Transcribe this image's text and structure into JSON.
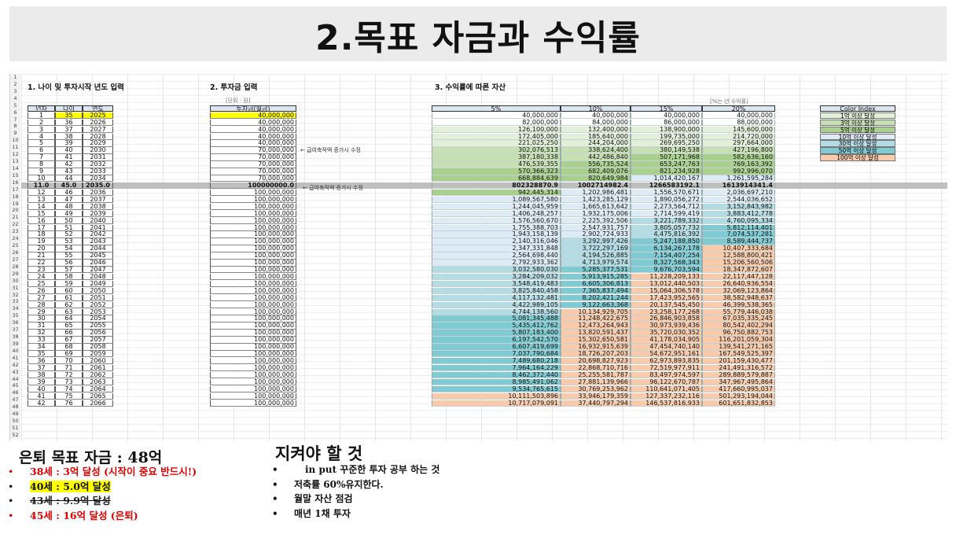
{
  "title": "2.목표 자금과 수익률",
  "sections": {
    "s1": "1. 나이 및 투자시작 년도 입력",
    "s2": "2. 투자금 입력",
    "s3": "3. 수익률에 따른 자산",
    "unit": "[단위 : 원]",
    "percent_note": "[%는 년 수익률]"
  },
  "headers": {
    "year": "년차",
    "age": "나이",
    "yr": "연도",
    "invest": "투자금(월금)",
    "r5": "5%",
    "r10": "10%",
    "r15": "15%",
    "r20": "20%",
    "color_index": "Color Index"
  },
  "notes": {
    "n1": "← 급여축적액 증가시 수정",
    "n2": "← 급여축적액 증가시 수정"
  },
  "legend": [
    "1억 이상 달성",
    "3억 이상 달성",
    "5억 이상 달성",
    "10억 이상 달성",
    "30억 이상 달성",
    "50억 이상 달성",
    "100억 이상 달성"
  ],
  "legend_colors": [
    "#e2f0d9",
    "#c6e0b4",
    "#a9d08e",
    "#ddebf7",
    "#b4dce4",
    "#7fcad3",
    "#f8cbad"
  ],
  "row_numbers": [
    "1",
    "2",
    "3",
    "4",
    "5",
    "6",
    "7",
    "8",
    "9",
    "10",
    "11",
    "12",
    "13",
    "14",
    "15",
    "16",
    "17",
    "18",
    "19",
    "20",
    "21",
    "22",
    "23",
    "24",
    "25",
    "26",
    "27",
    "28",
    "29",
    "30",
    "31",
    "32",
    "33",
    "34",
    "35",
    "36",
    "37",
    "38",
    "39",
    "40",
    "41",
    "42",
    "43",
    "44",
    "45",
    "46",
    "47",
    "48",
    "49",
    "50",
    "51",
    "52"
  ],
  "rows": [
    [
      "1",
      "35",
      "2025",
      "40,000,000",
      "40,000,000",
      "40,000,000",
      "40,000,000",
      "40,000,000"
    ],
    [
      "2",
      "36",
      "2026",
      "40,000,000",
      "82,000,000",
      "84,000,000",
      "86,000,000",
      "88,000,000"
    ],
    [
      "3",
      "37",
      "2027",
      "40,000,000",
      "126,100,000",
      "132,400,000",
      "138,900,000",
      "145,600,000"
    ],
    [
      "4",
      "38",
      "2028",
      "40,000,000",
      "172,405,000",
      "185,640,000",
      "199,735,000",
      "214,720,000"
    ],
    [
      "5",
      "39",
      "2029",
      "40,000,000",
      "221,025,250",
      "244,204,000",
      "269,695,250",
      "297,664,000"
    ],
    [
      "6",
      "40",
      "2030",
      "70,000,000",
      "302,076,513",
      "338,624,400",
      "380,149,538",
      "427,196,800"
    ],
    [
      "7",
      "41",
      "2031",
      "70,000,000",
      "387,180,338",
      "442,486,840",
      "507,171,968",
      "582,636,160"
    ],
    [
      "8",
      "42",
      "2032",
      "70,000,000",
      "476,539,355",
      "556,735,524",
      "653,247,763",
      "769,163,392"
    ],
    [
      "9",
      "43",
      "2033",
      "70,000,000",
      "570,366,323",
      "682,409,076",
      "821,234,928",
      "992,996,070"
    ],
    [
      "10",
      "44",
      "2034",
      "70,000,000",
      "668,884,639",
      "820,649,984",
      "1,014,420,167",
      "1,261,595,284"
    ],
    [
      "11.0",
      "45.0",
      "2035.0",
      "100000000.0",
      "802328870.9",
      "1002714982.4",
      "1266583192.1",
      "1613914341.4"
    ],
    [
      "12",
      "46",
      "2036",
      "100,000,000",
      "942,445,314",
      "1,202,986,481",
      "1,556,570,671",
      "2,036,697,210"
    ],
    [
      "13",
      "47",
      "2037",
      "100,000,000",
      "1,089,567,580",
      "1,423,285,129",
      "1,890,056,272",
      "2,544,036,652"
    ],
    [
      "14",
      "48",
      "2038",
      "100,000,000",
      "1,244,045,959",
      "1,665,613,642",
      "2,273,564,712",
      "3,152,843,982"
    ],
    [
      "15",
      "49",
      "2039",
      "100,000,000",
      "1,406,248,257",
      "1,932,175,006",
      "2,714,599,419",
      "3,883,412,778"
    ],
    [
      "16",
      "50",
      "2040",
      "100,000,000",
      "1,576,560,670",
      "2,225,392,506",
      "3,221,789,332",
      "4,760,095,334"
    ],
    [
      "17",
      "51",
      "2041",
      "100,000,000",
      "1,755,388,703",
      "2,547,931,757",
      "3,805,057,732",
      "5,812,114,401"
    ],
    [
      "18",
      "52",
      "2042",
      "100,000,000",
      "1,943,158,139",
      "2,902,724,933",
      "4,475,816,392",
      "7,074,537,281"
    ],
    [
      "19",
      "53",
      "2043",
      "100,000,000",
      "2,140,316,046",
      "3,292,997,426",
      "5,247,188,850",
      "8,589,444,737"
    ],
    [
      "20",
      "54",
      "2044",
      "100,000,000",
      "2,347,331,848",
      "3,722,297,169",
      "6,134,267,178",
      "10,407,333,684"
    ],
    [
      "21",
      "55",
      "2045",
      "100,000,000",
      "2,564,698,440",
      "4,194,526,885",
      "7,154,407,254",
      "12,588,800,421"
    ],
    [
      "22",
      "56",
      "2046",
      "100,000,000",
      "2,792,933,362",
      "4,713,979,574",
      "8,327,568,343",
      "15,206,560,506"
    ],
    [
      "23",
      "57",
      "2047",
      "100,000,000",
      "3,032,580,030",
      "5,285,377,531",
      "9,676,703,594",
      "18,347,872,607"
    ],
    [
      "24",
      "58",
      "2048",
      "100,000,000",
      "3,284,209,032",
      "5,913,915,285",
      "11,228,209,133",
      "22,117,447,128"
    ],
    [
      "25",
      "59",
      "2049",
      "100,000,000",
      "3,548,419,483",
      "6,605,306,813",
      "13,012,440,503",
      "26,640,936,554"
    ],
    [
      "26",
      "60",
      "2050",
      "100,000,000",
      "3,825,840,458",
      "7,365,837,494",
      "15,064,306,578",
      "32,069,123,864"
    ],
    [
      "27",
      "61",
      "2051",
      "100,000,000",
      "4,117,132,481",
      "8,202,421,244",
      "17,423,952,565",
      "38,582,948,637"
    ],
    [
      "28",
      "62",
      "2052",
      "100,000,000",
      "4,422,989,105",
      "9,122,663,368",
      "20,137,545,450",
      "46,399,538,365"
    ],
    [
      "29",
      "63",
      "2053",
      "100,000,000",
      "4,744,138,560",
      "10,134,929,705",
      "23,258,177,268",
      "55,779,446,038"
    ],
    [
      "30",
      "64",
      "2054",
      "100,000,000",
      "5,081,345,488",
      "11,248,422,675",
      "26,846,903,858",
      "67,035,335,245"
    ],
    [
      "31",
      "65",
      "2055",
      "100,000,000",
      "5,435,412,762",
      "12,473,264,943",
      "30,973,939,436",
      "80,542,402,294"
    ],
    [
      "32",
      "66",
      "2056",
      "100,000,000",
      "5,807,183,400",
      "13,820,591,437",
      "35,720,030,352",
      "96,750,882,753"
    ],
    [
      "33",
      "67",
      "2057",
      "100,000,000",
      "6,197,542,570",
      "15,302,650,581",
      "41,178,034,905",
      "116,201,059,304"
    ],
    [
      "34",
      "68",
      "2058",
      "100,000,000",
      "6,607,419,699",
      "16,932,915,639",
      "47,454,740,140",
      "139,541,271,165"
    ],
    [
      "35",
      "69",
      "2059",
      "100,000,000",
      "7,037,790,684",
      "18,726,207,203",
      "54,672,951,161",
      "167,549,525,397"
    ],
    [
      "36",
      "70",
      "2060",
      "100,000,000",
      "7,489,680,218",
      "20,698,827,923",
      "62,973,893,835",
      "201,159,430,477"
    ],
    [
      "37",
      "71",
      "2061",
      "100,000,000",
      "7,964,164,229",
      "22,868,710,716",
      "72,519,977,911",
      "241,491,316,572"
    ],
    [
      "38",
      "72",
      "2062",
      "100,000,000",
      "8,462,372,440",
      "25,255,581,787",
      "83,497,974,597",
      "289,889,579,887"
    ],
    [
      "39",
      "73",
      "2063",
      "100,000,000",
      "8,985,491,062",
      "27,881,139,966",
      "96,122,670,787",
      "347,967,495,864"
    ],
    [
      "40",
      "74",
      "2064",
      "100,000,000",
      "9,534,765,615",
      "30,769,253,962",
      "110,641,071,405",
      "417,660,995,037"
    ],
    [
      "41",
      "75",
      "2065",
      "100,000,000",
      "10,111,503,896",
      "33,946,179,359",
      "127,337,232,116",
      "501,293,194,044"
    ],
    [
      "42",
      "76",
      "2066",
      "100,000,000",
      "10,717,079,091",
      "37,440,797,294",
      "146,537,816,933",
      "601,651,832,853"
    ]
  ],
  "bottom": {
    "goal_title": "은퇴 목표 자금 : 48억",
    "goals": [
      "38세 : 3억 달성 (시작이 중요 반드시!)",
      "40세 : 5.0억 달성",
      "43세 : 9.9억 달성",
      "45세 : 16억 달성 (은퇴)"
    ],
    "keep_title": "지켜야 할 것",
    "keeps": [
      "in put 꾸준한 투자 공부 하는 것",
      "저축률 60%유지한다.",
      "월말 자산 점검",
      "매년 1채 투자"
    ]
  },
  "colors": {
    "highlight_yellow": "#ffff00",
    "header_blue": "#dce6f1",
    "row16_gray": "#bfbfbf",
    "red": "#ff0000"
  }
}
